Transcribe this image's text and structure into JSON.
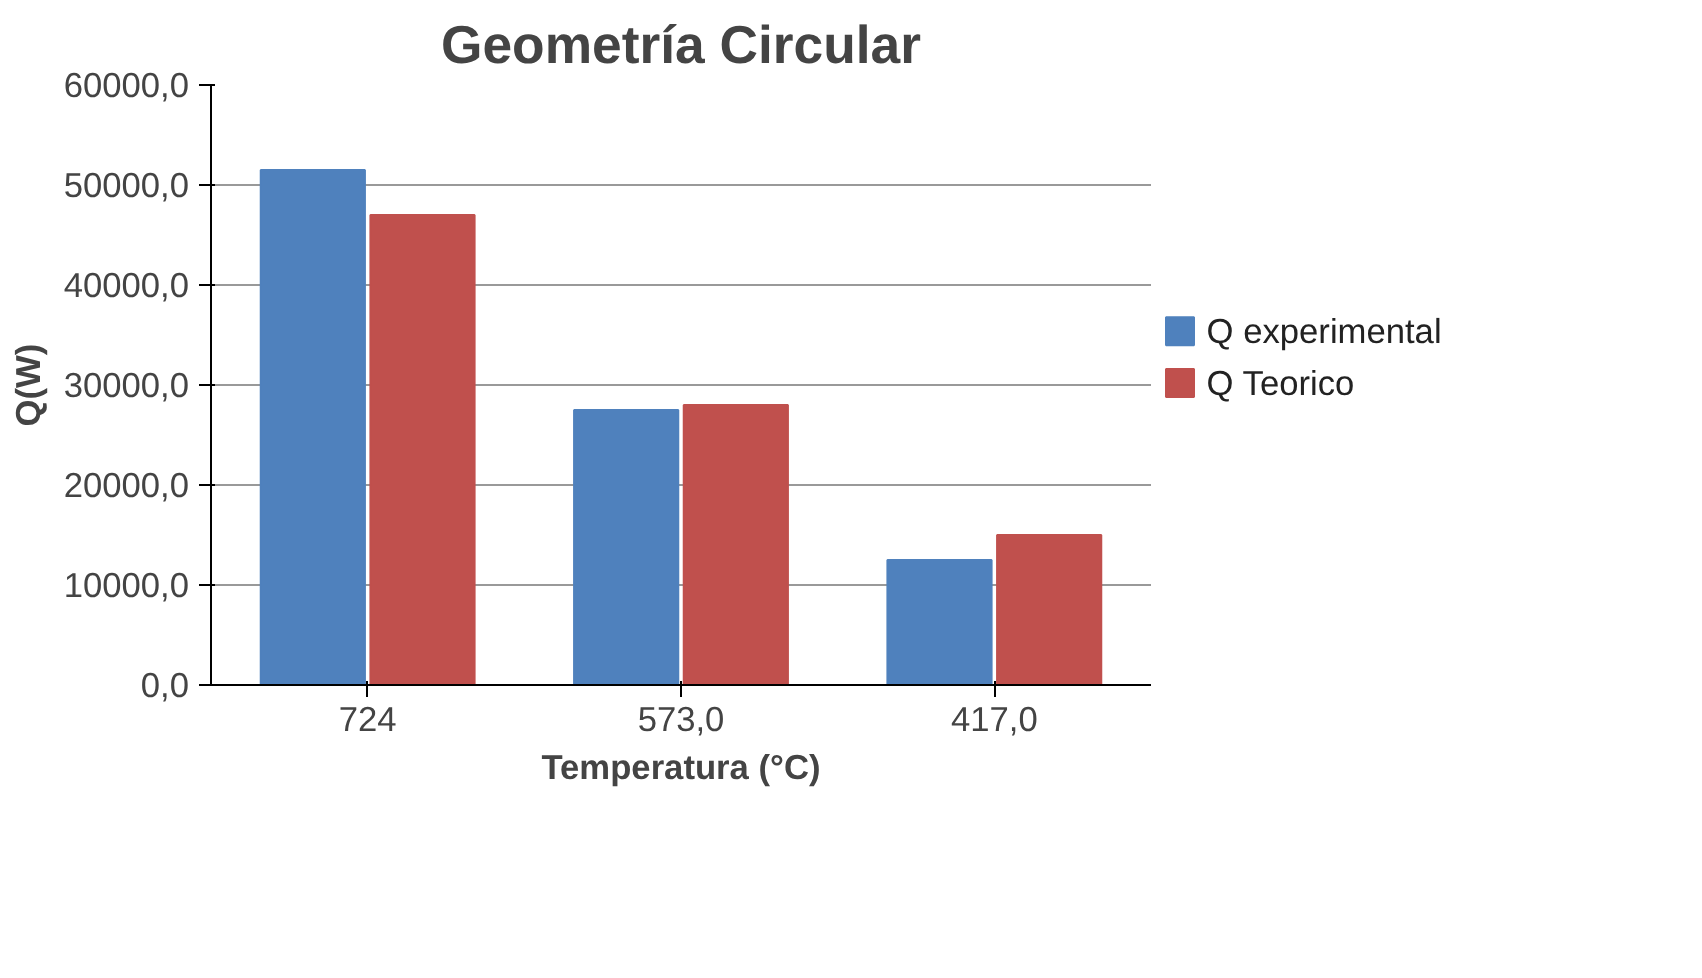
{
  "chart_data": {
    "type": "bar",
    "title": "Geometría Circular",
    "xlabel": "Temperatura (°C)",
    "ylabel": "Q(W)",
    "categories": [
      "724",
      "573,0",
      "417,0"
    ],
    "series": [
      {
        "name": "Q experimental",
        "color": "#4f81bd",
        "values": [
          51500,
          27500,
          12500
        ]
      },
      {
        "name": "Q Teorico",
        "color": "#c0504d",
        "values": [
          47000,
          28000,
          15000
        ]
      }
    ],
    "ylim": [
      0,
      60000
    ],
    "yticks": [
      {
        "value": 0,
        "label": "0,0"
      },
      {
        "value": 10000,
        "label": "10000,0"
      },
      {
        "value": 20000,
        "label": "20000,0"
      },
      {
        "value": 30000,
        "label": "30000,0"
      },
      {
        "value": 40000,
        "label": "40000,0"
      },
      {
        "value": 50000,
        "label": "50000,0"
      },
      {
        "value": 60000,
        "label": "60000,0"
      }
    ],
    "grid": "y",
    "legend": "right"
  }
}
